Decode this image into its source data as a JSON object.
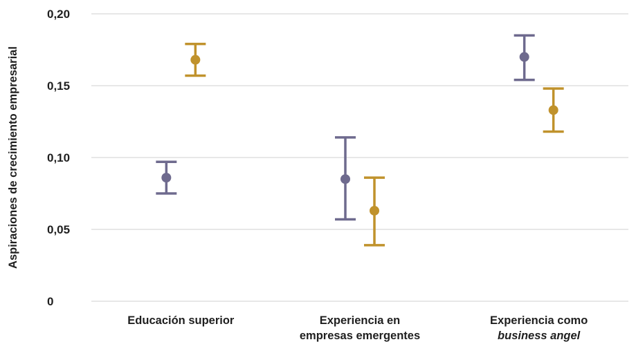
{
  "chart_data": {
    "type": "scatter",
    "title": "",
    "ylabel": "Aspiraciones de crecimiento empresarial",
    "xlabel": "",
    "ylim": [
      0,
      0.2
    ],
    "yticks": [
      {
        "value": 0,
        "label": "0"
      },
      {
        "value": 0.05,
        "label": "0,05"
      },
      {
        "value": 0.1,
        "label": "0,10"
      },
      {
        "value": 0.15,
        "label": "0,15"
      },
      {
        "value": 0.2,
        "label": "0,20"
      }
    ],
    "grid": true,
    "legend": "none",
    "categories": [
      {
        "lines": [
          {
            "text": "Educación superior",
            "italic": false
          }
        ]
      },
      {
        "lines": [
          {
            "text": "Experiencia en",
            "italic": false
          },
          {
            "text": "empresas emergentes",
            "italic": false
          }
        ]
      },
      {
        "lines": [
          {
            "text": "Experiencia como",
            "italic": false
          },
          {
            "text": "business angel",
            "italic": true
          }
        ]
      }
    ],
    "series": [
      {
        "color": "#6e6a8e",
        "points": [
          {
            "value": 0.086,
            "low": 0.075,
            "high": 0.097
          },
          {
            "value": 0.085,
            "low": 0.057,
            "high": 0.114
          },
          {
            "value": 0.17,
            "low": 0.154,
            "high": 0.185
          }
        ]
      },
      {
        "color": "#c0922c",
        "points": [
          {
            "value": 0.168,
            "low": 0.157,
            "high": 0.179
          },
          {
            "value": 0.063,
            "low": 0.039,
            "high": 0.086
          },
          {
            "value": 0.133,
            "low": 0.118,
            "high": 0.148
          }
        ]
      }
    ]
  }
}
